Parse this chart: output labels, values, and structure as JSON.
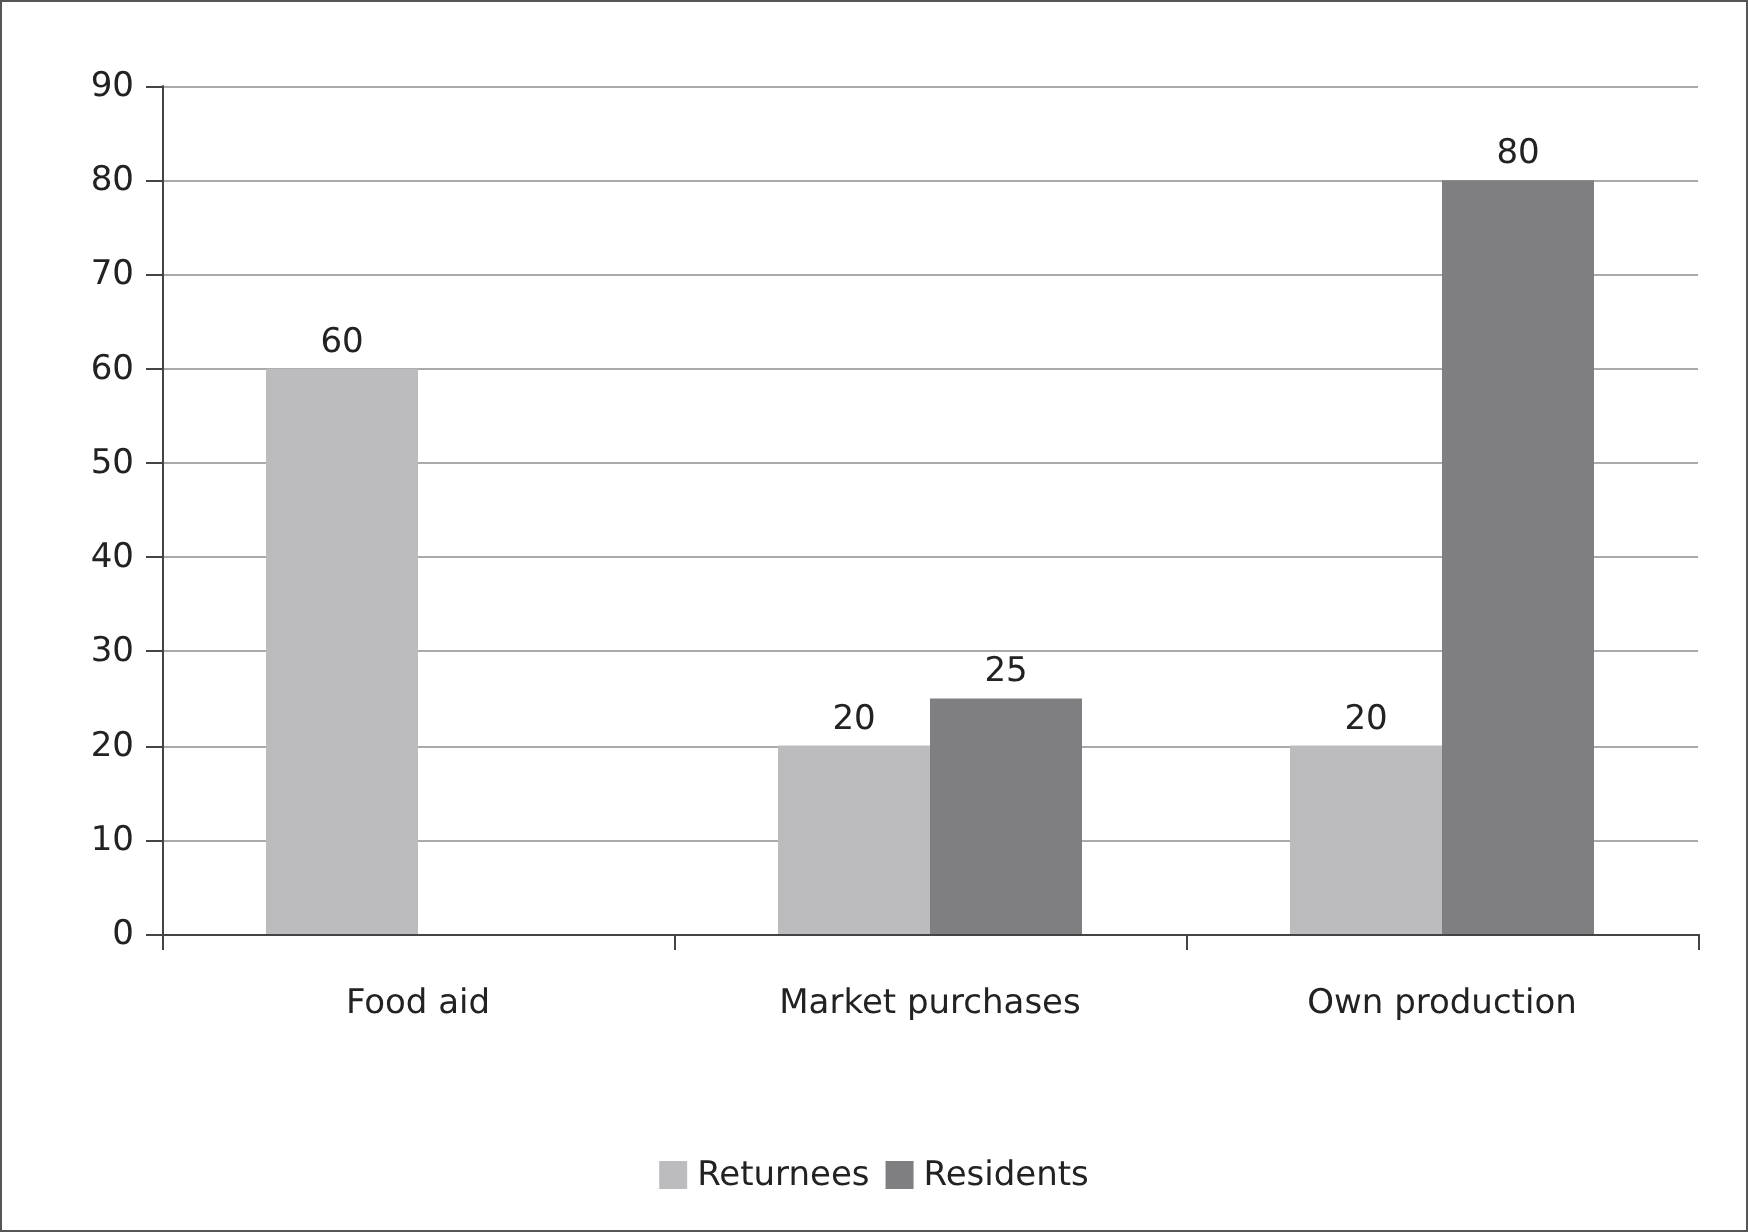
{
  "chart_data": {
    "type": "bar",
    "categories": [
      "Food aid",
      "Market purchases",
      "Own production"
    ],
    "series": [
      {
        "name": "Returnees",
        "color": "#bcbcbe",
        "values": [
          60,
          20,
          20
        ]
      },
      {
        "name": "Residents",
        "color": "#7f7f81",
        "values": [
          null,
          25,
          80
        ]
      }
    ],
    "ylim": [
      0,
      90
    ],
    "yticks": [
      0,
      10,
      20,
      30,
      40,
      50,
      60,
      70,
      80,
      90
    ],
    "grid": "y",
    "legend": "bottom",
    "data_labels": true
  }
}
